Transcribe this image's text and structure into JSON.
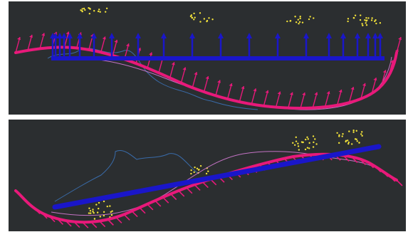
{
  "colors": {
    "background": "#2b2e30",
    "trajectory": "#e8197a",
    "trajectory_arrows": "#e8197a",
    "reference_line": "#1a16c9",
    "reference_arrows": "#1a16c9",
    "path_primary": "#d47ad4",
    "path_secondary": "#3a6fb0",
    "point_cloud": "#f2e23a"
  },
  "panels": [
    {
      "name": "top-view",
      "icons": [
        "magenta-vector-arrows",
        "blue-vector-arrows",
        "yellow-point-cloud"
      ]
    },
    {
      "name": "perspective-view",
      "icons": [
        "magenta-vector-arrows",
        "blue-vector-arrows",
        "yellow-point-cloud"
      ]
    }
  ]
}
